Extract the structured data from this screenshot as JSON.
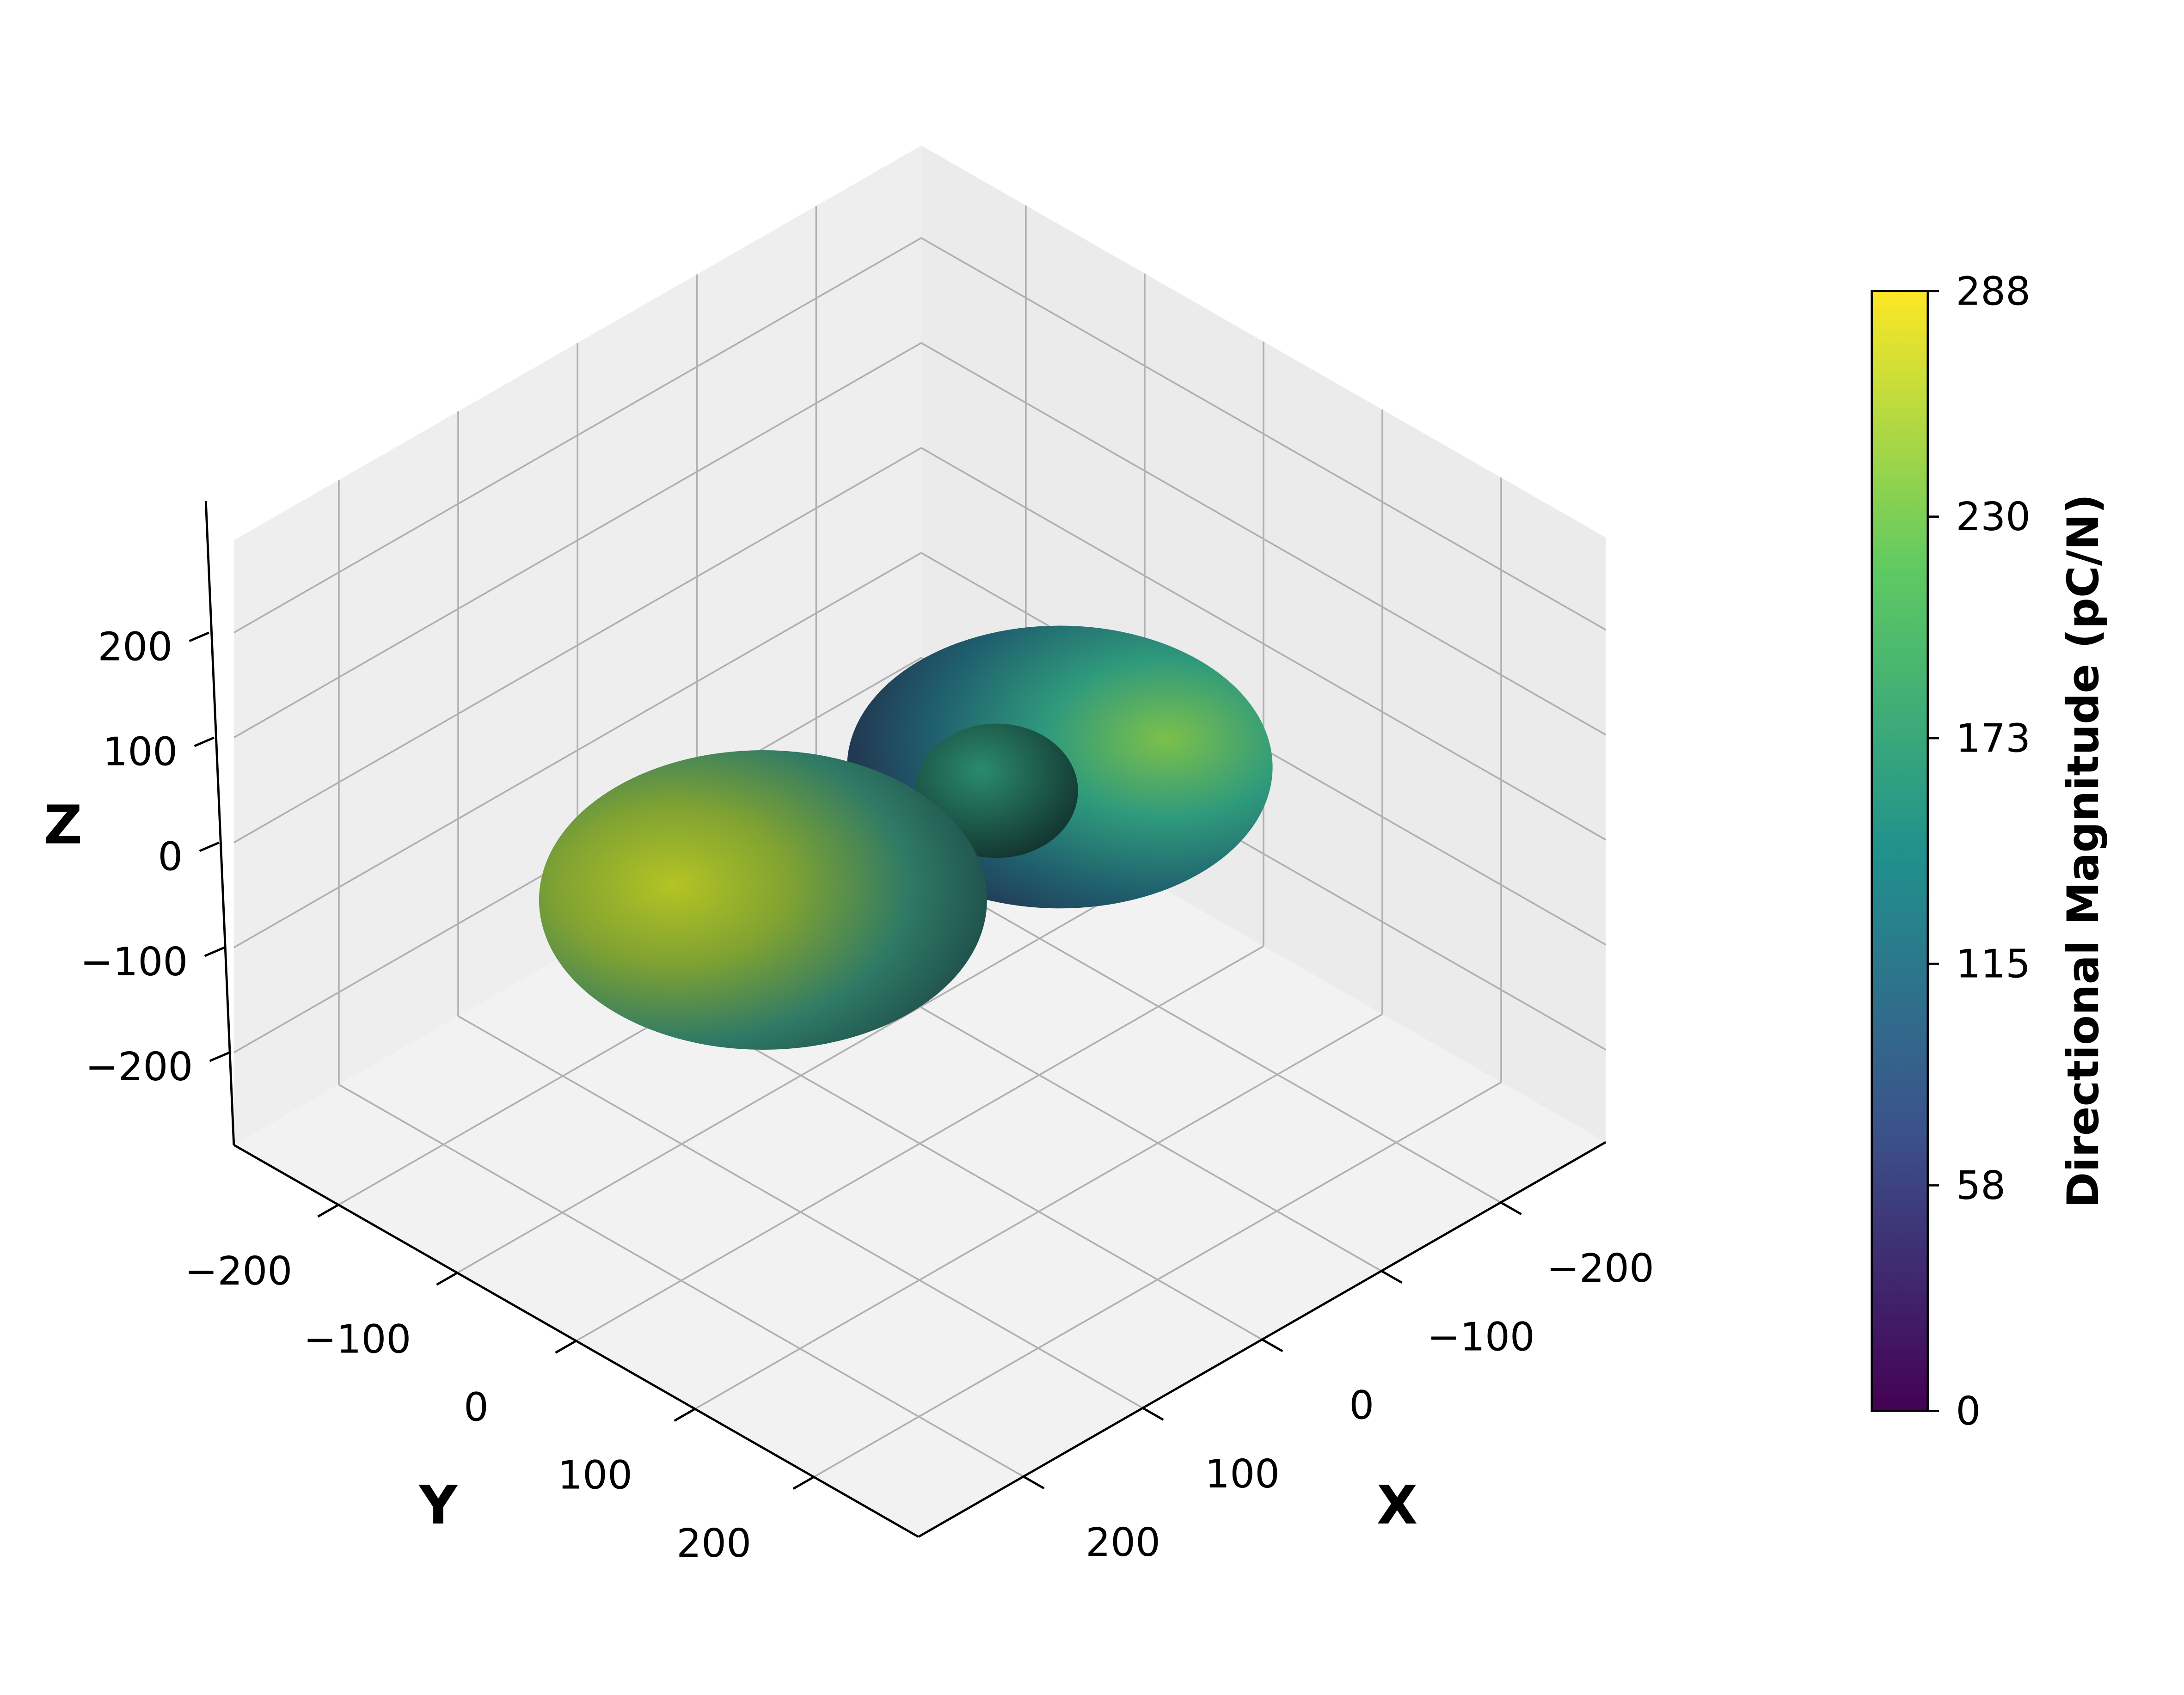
{
  "chart_data": {
    "type": "surface3d",
    "xlabel": "X",
    "ylabel": "Y",
    "zlabel": "Z",
    "xlim": [
      -288,
      288
    ],
    "ylim": [
      -288,
      288
    ],
    "zlim": [
      -288,
      288
    ],
    "xticks": [
      {
        "value": -200,
        "label": "−200"
      },
      {
        "value": -100,
        "label": "−100"
      },
      0,
      100,
      200
    ],
    "yticks": [
      {
        "value": -200,
        "label": "−200"
      },
      {
        "value": -100,
        "label": "−100"
      },
      0,
      100,
      200
    ],
    "zticks": [
      {
        "value": -200,
        "label": "−200"
      },
      {
        "value": -100,
        "label": "−100"
      },
      0,
      100,
      200
    ],
    "grid": true,
    "colorbar": {
      "label": "Directional Magnitude (pC/N)",
      "clim": [
        0,
        288
      ],
      "ticks": [
        0,
        58,
        115,
        173,
        230,
        288
      ],
      "colormap": [
        "#440154",
        "#3b528b",
        "#21918c",
        "#5ec962",
        "#fde725"
      ]
    }
  }
}
